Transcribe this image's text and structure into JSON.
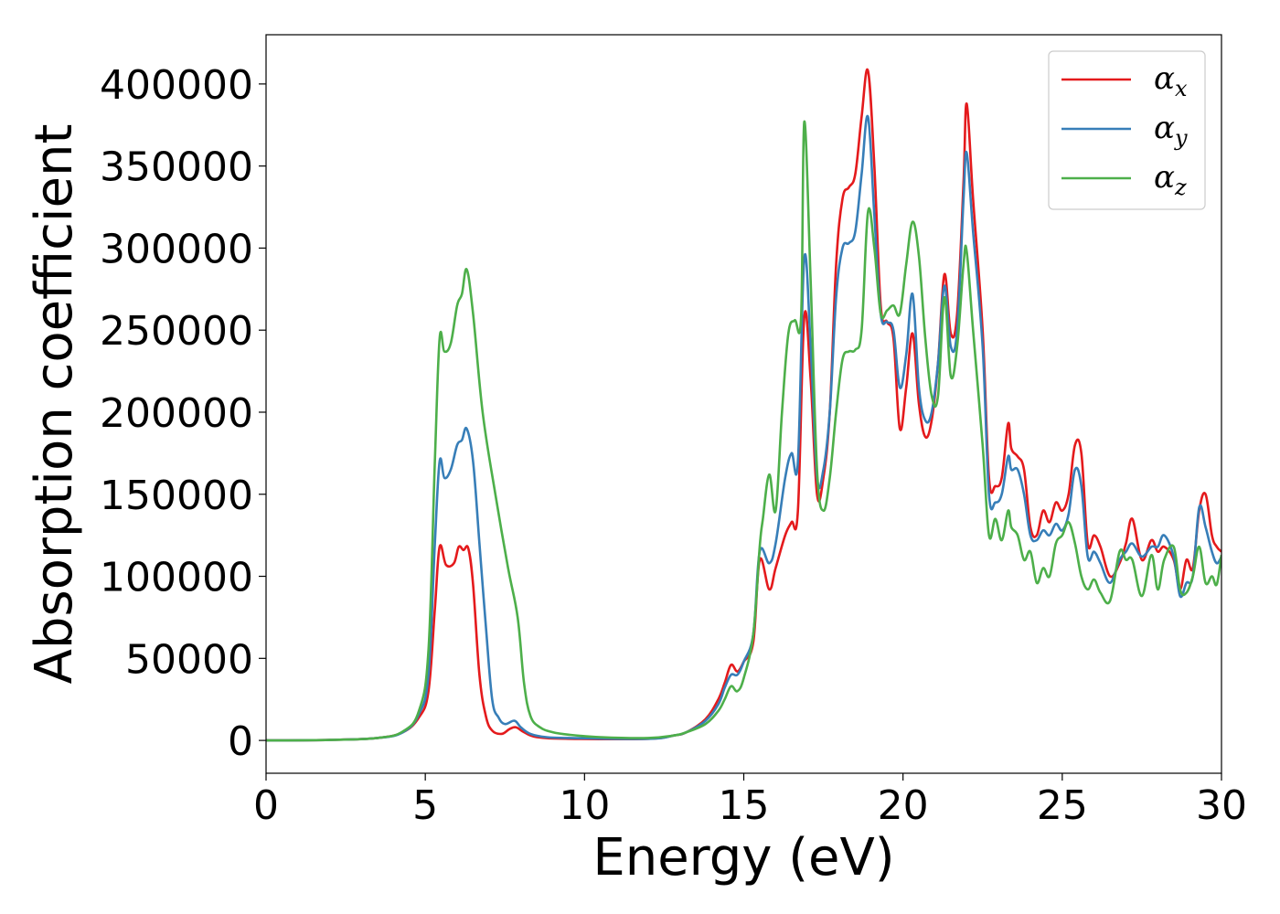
{
  "chart_data": {
    "type": "line",
    "xlabel": "Energy (eV)",
    "ylabel": "Absorption coefficient",
    "xlim": [
      0,
      30
    ],
    "ylim": [
      -20000,
      430000
    ],
    "xticks": [
      0,
      5,
      10,
      15,
      20,
      25,
      30
    ],
    "yticks": [
      0,
      50000,
      100000,
      150000,
      200000,
      250000,
      300000,
      350000,
      400000
    ],
    "xtick_labels": [
      "0",
      "5",
      "10",
      "15",
      "20",
      "25",
      "30"
    ],
    "ytick_labels": [
      "0",
      "50000",
      "100000",
      "150000",
      "200000",
      "250000",
      "300000",
      "350000",
      "400000"
    ],
    "grid": false,
    "legend_position": "top-right",
    "series": [
      {
        "name": "α",
        "subscript": "x",
        "color": "#e41a1c",
        "x": [
          0,
          2,
          3.5,
          4.3,
          4.8,
          5.1,
          5.3,
          5.45,
          5.65,
          5.9,
          6.05,
          6.2,
          6.35,
          6.5,
          6.7,
          6.9,
          7.1,
          7.4,
          7.65,
          7.85,
          8.1,
          8.5,
          9.5,
          12,
          12.8,
          13.2,
          13.8,
          14.2,
          14.4,
          14.6,
          14.8,
          15.0,
          15.3,
          15.5,
          15.8,
          16.0,
          16.3,
          16.5,
          16.7,
          16.9,
          17.1,
          17.3,
          17.5,
          17.7,
          17.9,
          18.1,
          18.3,
          18.5,
          18.7,
          18.9,
          19.1,
          19.3,
          19.5,
          19.7,
          19.9,
          20.1,
          20.3,
          20.5,
          20.7,
          20.9,
          21.1,
          21.3,
          21.5,
          21.7,
          21.9,
          22.0,
          22.2,
          22.5,
          22.7,
          22.9,
          23.1,
          23.3,
          23.4,
          23.6,
          23.8,
          24.0,
          24.2,
          24.4,
          24.6,
          24.8,
          25.0,
          25.2,
          25.4,
          25.6,
          25.8,
          26.0,
          26.2,
          26.5,
          26.8,
          27.0,
          27.2,
          27.5,
          27.8,
          28.0,
          28.2,
          28.5,
          28.7,
          28.9,
          29.1,
          29.3,
          29.5,
          29.7,
          29.85,
          30
        ],
        "y": [
          0,
          300,
          1500,
          5000,
          14000,
          30000,
          80000,
          118000,
          107000,
          108000,
          118000,
          116000,
          117000,
          95000,
          40000,
          15000,
          6000,
          4000,
          7000,
          8000,
          5000,
          2000,
          1000,
          1000,
          3000,
          5000,
          13000,
          25000,
          35000,
          46000,
          42000,
          48000,
          60000,
          110000,
          92000,
          105000,
          125000,
          133000,
          140000,
          258000,
          220000,
          150000,
          160000,
          200000,
          290000,
          330000,
          337000,
          345000,
          380000,
          408000,
          350000,
          265000,
          255000,
          245000,
          190000,
          215000,
          248000,
          205000,
          185000,
          195000,
          230000,
          284000,
          248000,
          260000,
          340000,
          388000,
          330000,
          250000,
          160000,
          155000,
          160000,
          193000,
          178000,
          173000,
          165000,
          130000,
          125000,
          140000,
          133000,
          145000,
          140000,
          150000,
          180000,
          175000,
          120000,
          125000,
          118000,
          100000,
          108000,
          120000,
          135000,
          110000,
          122000,
          115000,
          118000,
          110000,
          92000,
          110000,
          105000,
          140000,
          150000,
          125000,
          118000,
          115000
        ]
      },
      {
        "name": "α",
        "subscript": "y",
        "color": "#377eb8",
        "x": [
          0,
          2,
          3.5,
          4.3,
          4.8,
          5.1,
          5.3,
          5.45,
          5.6,
          5.8,
          6.0,
          6.15,
          6.3,
          6.5,
          6.7,
          6.9,
          7.1,
          7.3,
          7.5,
          7.8,
          8.0,
          8.3,
          8.8,
          9.5,
          12,
          12.8,
          13.2,
          13.8,
          14.2,
          14.4,
          14.6,
          14.8,
          15.0,
          15.3,
          15.5,
          15.8,
          16.0,
          16.3,
          16.5,
          16.7,
          16.9,
          17.1,
          17.3,
          17.5,
          17.7,
          17.9,
          18.1,
          18.3,
          18.5,
          18.7,
          18.9,
          19.1,
          19.3,
          19.5,
          19.7,
          19.9,
          20.1,
          20.3,
          20.5,
          20.7,
          20.9,
          21.1,
          21.3,
          21.5,
          21.7,
          21.9,
          22.0,
          22.2,
          22.5,
          22.7,
          22.9,
          23.1,
          23.3,
          23.4,
          23.6,
          23.8,
          24.0,
          24.2,
          24.4,
          24.6,
          24.8,
          25.0,
          25.2,
          25.4,
          25.6,
          25.8,
          26.0,
          26.2,
          26.5,
          26.8,
          27.0,
          27.2,
          27.5,
          27.8,
          28.0,
          28.2,
          28.5,
          28.7,
          28.9,
          29.1,
          29.3,
          29.5,
          29.7,
          29.85,
          30
        ],
        "y": [
          0,
          300,
          1500,
          5000,
          16000,
          40000,
          120000,
          170000,
          160000,
          165000,
          180000,
          183000,
          190000,
          170000,
          120000,
          70000,
          25000,
          14000,
          10000,
          12000,
          8000,
          4000,
          2000,
          1500,
          1000,
          3000,
          5000,
          12000,
          22000,
          32000,
          40000,
          40000,
          48000,
          65000,
          115000,
          108000,
          120000,
          160000,
          175000,
          170000,
          294000,
          240000,
          160000,
          165000,
          200000,
          270000,
          300000,
          303000,
          310000,
          345000,
          380000,
          320000,
          260000,
          255000,
          250000,
          215000,
          235000,
          272000,
          215000,
          195000,
          200000,
          230000,
          277000,
          240000,
          250000,
          330000,
          358000,
          310000,
          240000,
          150000,
          145000,
          150000,
          173000,
          165000,
          165000,
          150000,
          125000,
          122000,
          128000,
          125000,
          132000,
          128000,
          138000,
          165000,
          155000,
          112000,
          115000,
          108000,
          96000,
          110000,
          115000,
          120000,
          112000,
          118000,
          118000,
          125000,
          112000,
          88000,
          96000,
          100000,
          142000,
          130000,
          115000,
          108000,
          112000
        ]
      },
      {
        "name": "α",
        "subscript": "z",
        "color": "#4daf4a",
        "x": [
          0,
          2,
          3.5,
          4.3,
          4.8,
          5.1,
          5.3,
          5.45,
          5.6,
          5.8,
          6.0,
          6.15,
          6.3,
          6.5,
          6.8,
          7.2,
          7.6,
          7.9,
          8.1,
          8.3,
          8.6,
          9.0,
          9.5,
          10.5,
          12,
          12.8,
          13.2,
          13.8,
          14.2,
          14.4,
          14.6,
          14.8,
          15.0,
          15.3,
          15.5,
          15.6,
          15.8,
          16.0,
          16.2,
          16.4,
          16.6,
          16.8,
          16.9,
          17.1,
          17.3,
          17.5,
          17.7,
          17.9,
          18.1,
          18.3,
          18.5,
          18.7,
          18.9,
          19.1,
          19.3,
          19.5,
          19.7,
          19.9,
          20.1,
          20.3,
          20.5,
          20.7,
          20.9,
          21.1,
          21.3,
          21.5,
          21.7,
          21.9,
          22.0,
          22.2,
          22.5,
          22.7,
          22.9,
          23.1,
          23.3,
          23.4,
          23.6,
          23.8,
          24.0,
          24.2,
          24.4,
          24.6,
          24.8,
          25.0,
          25.2,
          25.4,
          25.6,
          25.8,
          26.0,
          26.2,
          26.5,
          26.8,
          27.0,
          27.2,
          27.5,
          27.8,
          28.0,
          28.2,
          28.5,
          28.7,
          28.9,
          29.1,
          29.3,
          29.5,
          29.7,
          29.85,
          30
        ],
        "y": [
          0,
          300,
          1500,
          5500,
          18000,
          55000,
          170000,
          245000,
          237000,
          242000,
          265000,
          272000,
          287000,
          260000,
          200000,
          150000,
          105000,
          75000,
          35000,
          15000,
          8000,
          5000,
          3500,
          2000,
          1500,
          3000,
          5000,
          10000,
          18000,
          25000,
          33000,
          30000,
          38000,
          65000,
          118000,
          135000,
          162000,
          140000,
          200000,
          248000,
          256000,
          258000,
          377000,
          280000,
          165000,
          140000,
          160000,
          200000,
          232000,
          237000,
          238000,
          250000,
          322000,
          300000,
          260000,
          262000,
          265000,
          260000,
          290000,
          316000,
          295000,
          245000,
          210000,
          210000,
          270000,
          222000,
          240000,
          290000,
          298000,
          250000,
          180000,
          125000,
          135000,
          122000,
          140000,
          130000,
          125000,
          110000,
          115000,
          96000,
          105000,
          100000,
          120000,
          125000,
          133000,
          120000,
          100000,
          92000,
          98000,
          90000,
          85000,
          115000,
          110000,
          110000,
          88000,
          113000,
          92000,
          110000,
          118000,
          92000,
          90000,
          100000,
          118000,
          96000,
          100000,
          95000,
          113000
        ]
      }
    ]
  }
}
